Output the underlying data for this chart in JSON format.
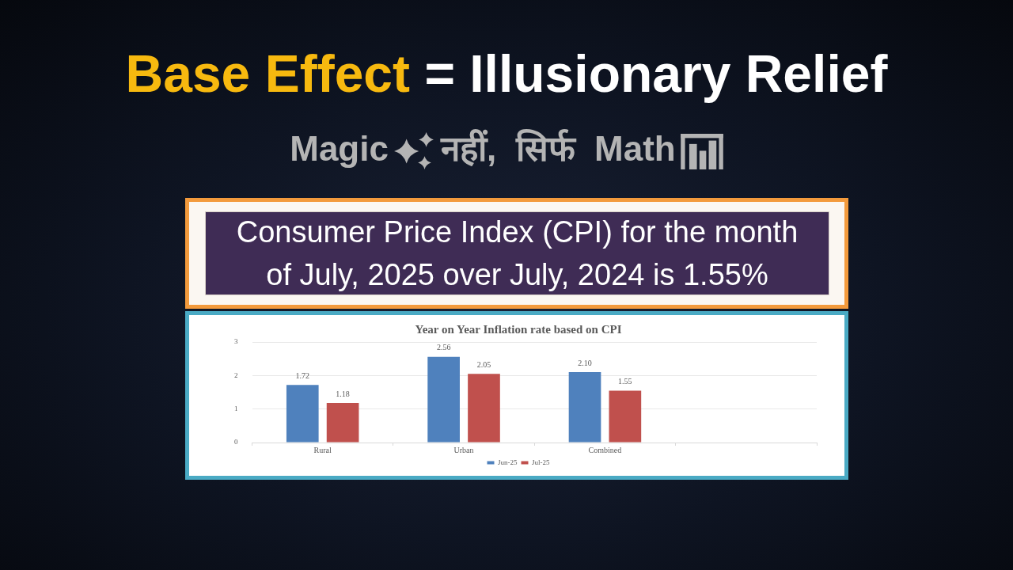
{
  "chart_data": {
    "type": "bar",
    "title": "Base Effect = Illusionary Relief",
    "subtitle": "Magic नहीं, सिर्फ Math",
    "annotations": [
      "Consumer Price Index (CPI) for the month of July, 2025 over July, 2024 is 1.55%",
      "Year on Year Inflation rate based on CPI"
    ],
    "categories": [
      "Rural",
      "Urban",
      "Combined",
      null
    ],
    "series": [
      {
        "name": "Jun-25",
        "color": "#4f81bd",
        "values": [
          1.72,
          2.56,
          2.1,
          null
        ],
        "value_labels": [
          "1.72",
          "2.56",
          "2.10",
          null
        ]
      },
      {
        "name": "Jul-25",
        "color": "#c0504d",
        "values": [
          1.18,
          2.05,
          1.55,
          null
        ],
        "value_labels": [
          "1.18",
          "2.05",
          "1.55",
          null
        ]
      }
    ],
    "ylim": [
      0,
      3
    ],
    "yticks": [
      0,
      1,
      2,
      3
    ],
    "grid": "y",
    "legend": "bottom"
  }
}
